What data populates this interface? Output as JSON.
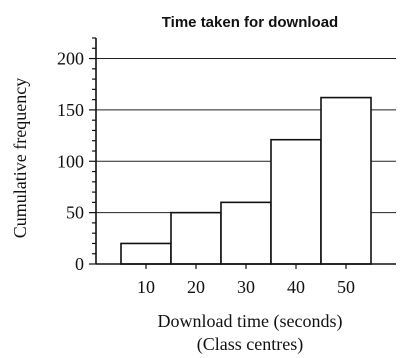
{
  "chart_data": {
    "type": "bar",
    "title": "Time taken for download",
    "xlabel": "Download time (seconds)",
    "xlabel2": "(Class centres)",
    "ylabel": "Cumulative frequency",
    "categories": [
      "10",
      "20",
      "30",
      "40",
      "50"
    ],
    "x": [
      10,
      20,
      30,
      40,
      50
    ],
    "values": [
      20,
      50,
      60,
      121,
      162
    ],
    "ylim": [
      0,
      220
    ],
    "xlim": [
      0,
      60
    ],
    "yticks": [
      0,
      50,
      100,
      150,
      200
    ],
    "xticks": [
      10,
      20,
      30,
      40,
      50
    ],
    "grid": true
  }
}
